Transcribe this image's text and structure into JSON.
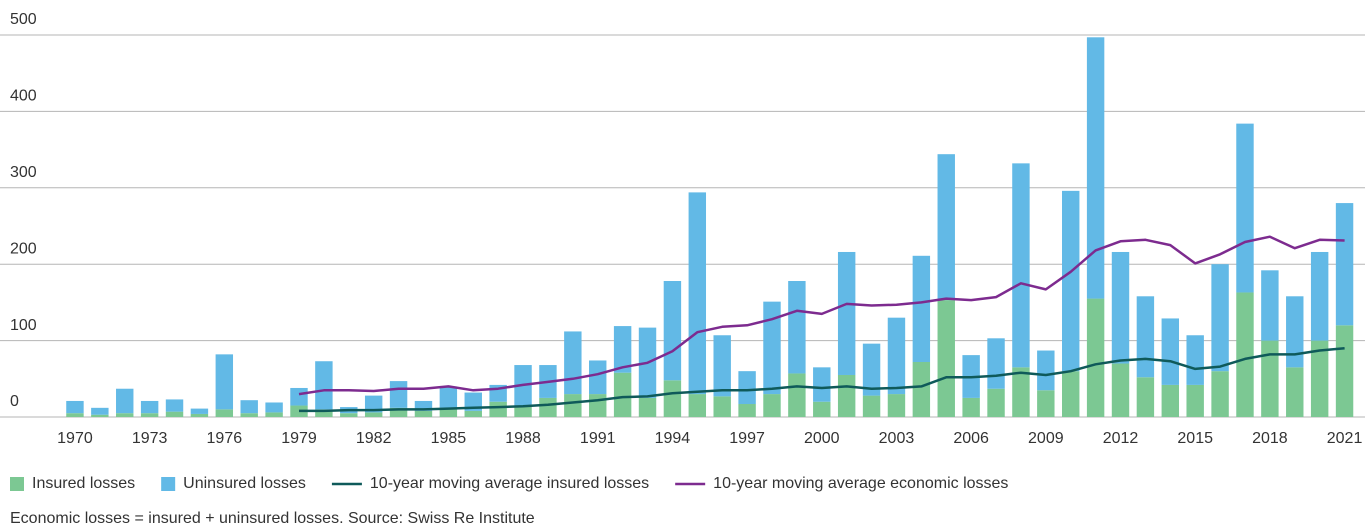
{
  "chart_data": {
    "type": "bar",
    "categories": [
      "1970",
      null,
      null,
      "1973",
      null,
      null,
      "1976",
      null,
      null,
      "1979",
      null,
      null,
      "1982",
      null,
      null,
      "1985",
      null,
      null,
      "1988",
      null,
      null,
      "1991",
      null,
      null,
      "1994",
      null,
      null,
      "1997",
      null,
      null,
      "2000",
      null,
      null,
      "2003",
      null,
      null,
      "2006",
      null,
      null,
      "2009",
      null,
      null,
      "2012",
      null,
      null,
      "2015",
      null,
      null,
      "2018",
      null,
      null,
      "2021"
    ],
    "stacked": true,
    "series": [
      {
        "name": "Insured losses",
        "color": "#7cc893",
        "kind": "bar",
        "values": [
          5,
          3,
          5,
          5,
          7,
          4,
          10,
          5,
          6,
          15,
          10,
          5,
          6,
          12,
          8,
          12,
          8,
          20,
          15,
          25,
          30,
          30,
          58,
          25,
          48,
          30,
          27,
          17,
          30,
          57,
          20,
          55,
          28,
          30,
          72,
          153,
          25,
          37,
          65,
          35,
          60,
          155,
          70,
          52,
          42,
          42,
          60,
          163,
          100,
          65,
          100,
          120
        ]
      },
      {
        "name": "Uninsured losses",
        "color": "#62b9e6",
        "kind": "bar",
        "values": [
          16,
          9,
          32,
          16,
          16,
          7,
          72,
          17,
          13,
          23,
          63,
          8,
          22,
          35,
          13,
          28,
          24,
          22,
          53,
          43,
          82,
          44,
          61,
          92,
          130,
          264,
          80,
          43,
          121,
          121,
          45,
          161,
          68,
          100,
          139,
          191,
          56,
          66,
          267,
          52,
          236,
          342,
          146,
          106,
          87,
          65,
          140,
          221,
          92,
          93,
          116,
          160
        ]
      },
      {
        "name": "10-year moving average insured losses",
        "color": "#0f5a5a",
        "kind": "line",
        "values": [
          null,
          null,
          null,
          null,
          null,
          null,
          null,
          null,
          null,
          8,
          8,
          9,
          9,
          10,
          10,
          11,
          12,
          13,
          14,
          16,
          19,
          22,
          26,
          27,
          31,
          33,
          35,
          35,
          37,
          40,
          38,
          40,
          37,
          38,
          40,
          52,
          52,
          54,
          58,
          55,
          60,
          69,
          74,
          76,
          73,
          63,
          66,
          76,
          82,
          82,
          87,
          90
        ]
      },
      {
        "name": "10-year moving average economic losses",
        "color": "#7d2b8f",
        "kind": "line",
        "values": [
          null,
          null,
          null,
          null,
          null,
          null,
          null,
          null,
          null,
          30,
          35,
          35,
          34,
          37,
          37,
          40,
          35,
          37,
          42,
          46,
          50,
          56,
          65,
          71,
          86,
          111,
          118,
          120,
          128,
          139,
          135,
          148,
          146,
          147,
          150,
          155,
          153,
          157,
          175,
          167,
          190,
          218,
          230,
          232,
          225,
          201,
          213,
          229,
          236,
          221,
          232,
          231
        ]
      }
    ],
    "ylim": [
      0,
      500
    ],
    "yticks": [
      0,
      100,
      200,
      300,
      400,
      500
    ],
    "grid": true,
    "footnote": "Economic losses = insured + uninsured losses. Source: Swiss Re Institute"
  }
}
